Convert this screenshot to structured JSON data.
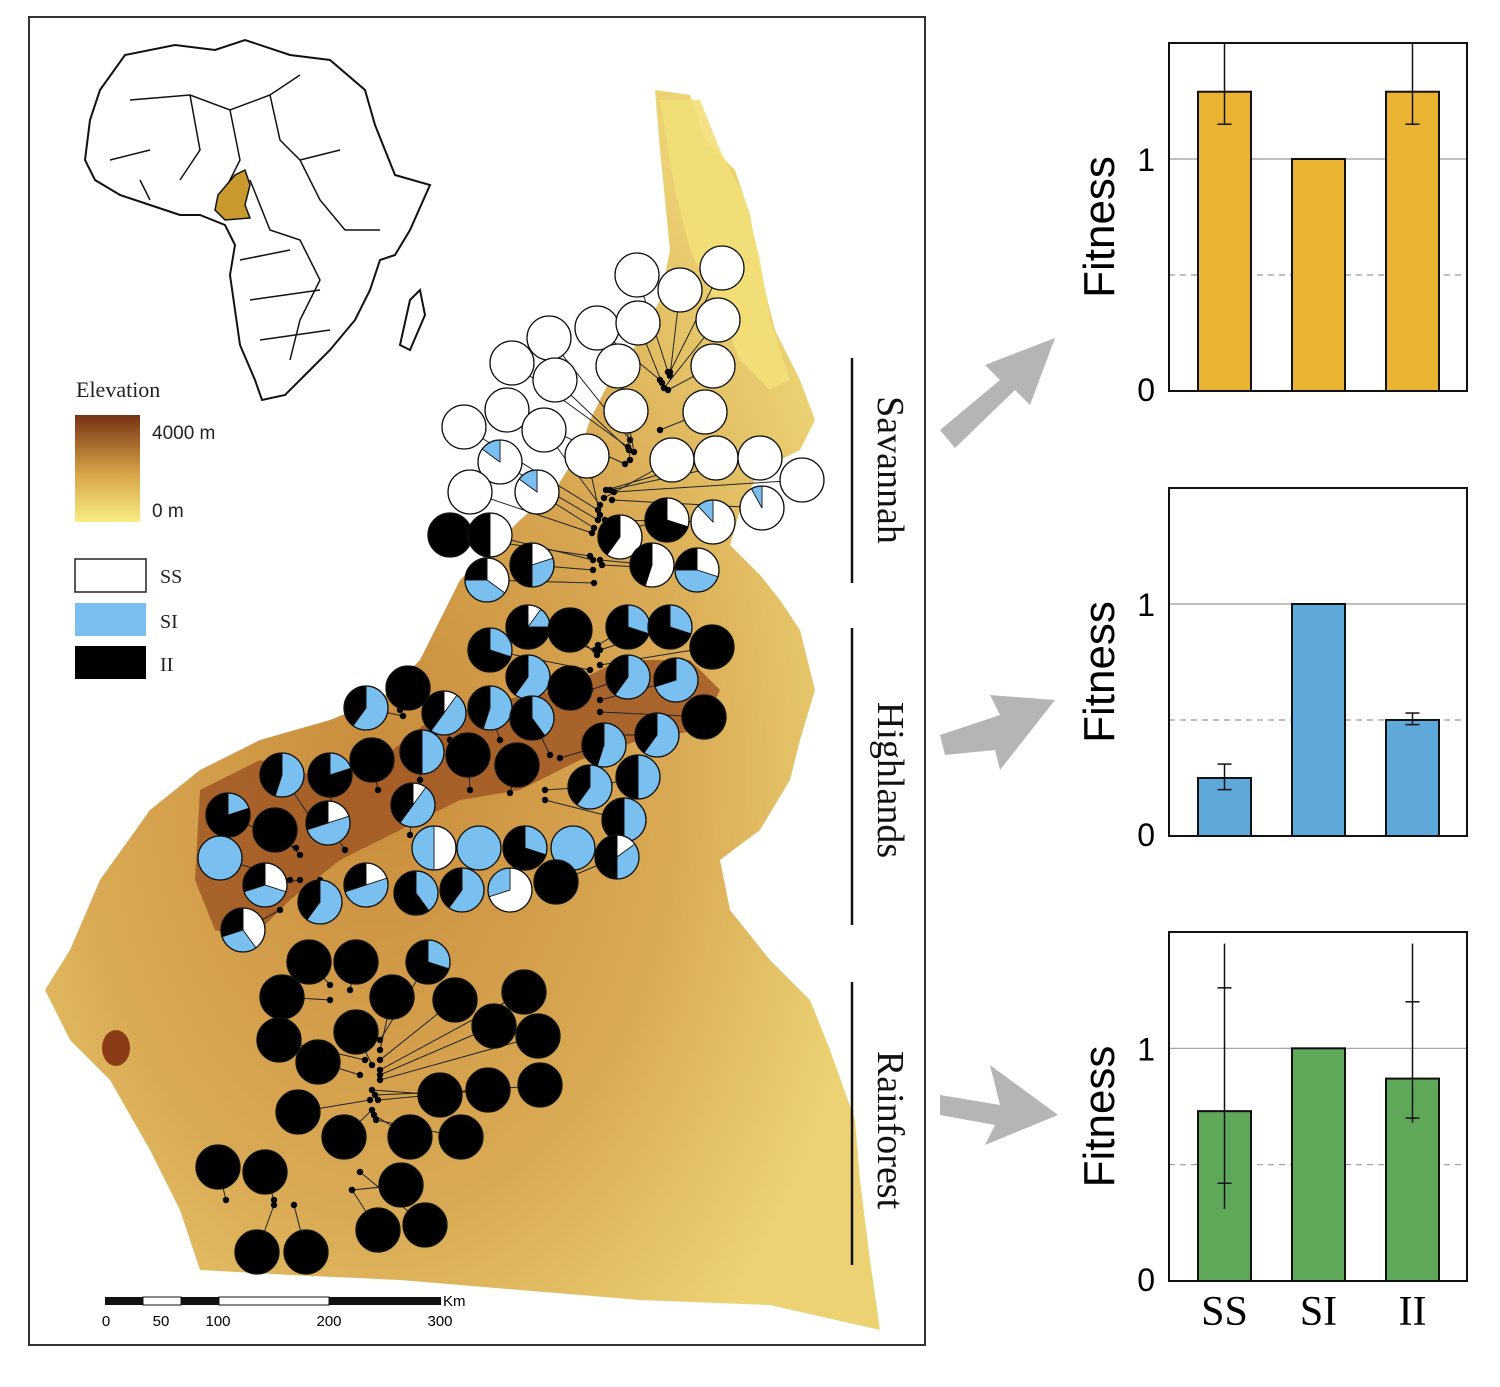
{
  "map": {
    "elevation_legend": {
      "title": "Elevation",
      "high_label": "4000 m",
      "low_label": "0 m",
      "colors": {
        "low": "#f6e77a",
        "mid": "#d9a04a",
        "high": "#7a3515"
      }
    },
    "genotype_legend": [
      {
        "label": "SS",
        "color": "#ffffff"
      },
      {
        "label": "SI",
        "color": "#79bfef"
      },
      {
        "label": "II",
        "color": "#000000"
      }
    ],
    "regions": [
      "Savannah",
      "Highlands",
      "Rainforest"
    ],
    "scale_bar": {
      "unit": "Km",
      "ticks": [
        "0",
        "50",
        "100",
        "200",
        "300"
      ]
    },
    "inset_highlight_color": "#c89a2e"
  },
  "chart_data": [
    {
      "type": "bar",
      "region": "Savannah",
      "categories": [
        "SS",
        "SI",
        "II"
      ],
      "values": [
        1.29,
        1.0,
        1.29
      ],
      "error_bars": [
        [
          1.15,
          1.5
        ],
        null,
        [
          1.15,
          1.5
        ]
      ],
      "ylabel": "Fitness",
      "yticks": [
        "0",
        "1"
      ],
      "ylim": [
        0,
        1.5
      ],
      "reference_solid": 1.0,
      "reference_dashed": 0.5,
      "color": "#ebb332"
    },
    {
      "type": "bar",
      "region": "Highlands",
      "categories": [
        "SS",
        "SI",
        "II"
      ],
      "values": [
        0.25,
        1.0,
        0.5
      ],
      "error_bars": [
        [
          0.2,
          0.31
        ],
        null,
        [
          0.48,
          0.53
        ]
      ],
      "ylabel": "Fitness",
      "yticks": [
        "0",
        "1"
      ],
      "ylim": [
        0,
        1.5
      ],
      "reference_solid": 1.0,
      "reference_dashed": 0.5,
      "color": "#5fa8da"
    },
    {
      "type": "bar",
      "region": "Rainforest",
      "categories": [
        "SS",
        "SI",
        "II"
      ],
      "values": [
        0.73,
        1.0,
        0.87
      ],
      "error_bars": [
        [
          0.42,
          1.26
        ],
        null,
        [
          0.7,
          1.2
        ]
      ],
      "error_bars_extent": [
        [
          0.31,
          1.45
        ],
        null,
        [
          0.68,
          1.45
        ]
      ],
      "ylabel": "Fitness",
      "yticks": [
        "0",
        "1"
      ],
      "ylim": [
        0,
        1.5
      ],
      "reference_solid": 1.0,
      "reference_dashed": 0.5,
      "color": "#5fa85a",
      "show_xticklabels": true
    }
  ]
}
